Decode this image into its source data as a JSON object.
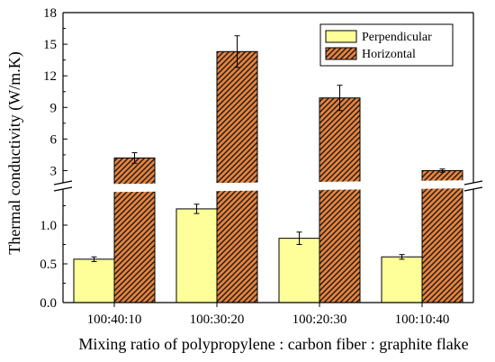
{
  "chart_data": {
    "type": "bar",
    "xlabel": "Mixing ratio of polypropylene : carbon fiber : graphite flake",
    "ylabel": "Thermal conductivity (W/m.K)",
    "categories": [
      "100:40:10",
      "100:30:20",
      "100:20:30",
      "100:10:40"
    ],
    "y_axis_broken": true,
    "ylim_lower": [
      0,
      1.5
    ],
    "ylim_upper": [
      1.5,
      18
    ],
    "yticks_lower": [
      "0.0",
      "0.5",
      "1.0"
    ],
    "yticks_upper": [
      "3",
      "6",
      "9",
      "12",
      "15",
      "18"
    ],
    "series": [
      {
        "name": "Perpendicular",
        "values": [
          0.56,
          1.21,
          0.83,
          0.59
        ],
        "errors": [
          0.03,
          0.06,
          0.08,
          0.03
        ],
        "color": "#ffff99",
        "pattern": "none"
      },
      {
        "name": "Horizontal",
        "values": [
          4.2,
          14.3,
          9.9,
          3.0
        ],
        "errors": [
          0.5,
          1.5,
          1.2,
          0.15
        ],
        "color": "#e6823c",
        "pattern": "diagonal-hatch"
      }
    ],
    "legend_position": "top-right",
    "grid": false
  }
}
